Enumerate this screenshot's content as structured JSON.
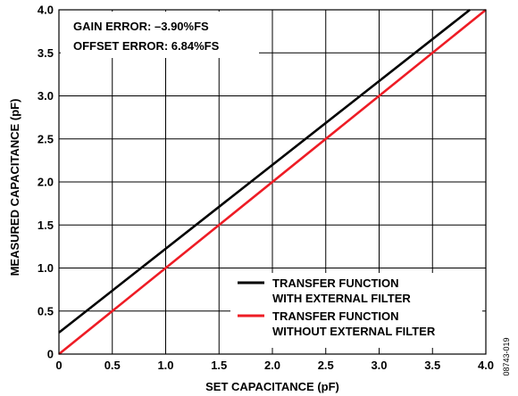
{
  "chart_data": {
    "type": "line",
    "xlabel": "SET CAPACITANCE (pF)",
    "ylabel": "MEASURED CAPACITANCE (pF)",
    "xlim": [
      0,
      4.0
    ],
    "ylim": [
      0,
      4.0
    ],
    "x_ticks": [
      "0",
      "0.5",
      "1.0",
      "1.5",
      "2.0",
      "2.5",
      "3.0",
      "3.5",
      "4.0"
    ],
    "y_ticks": [
      "0",
      "0.5",
      "1.0",
      "1.5",
      "2.0",
      "2.5",
      "3.0",
      "3.5",
      "4.0"
    ],
    "grid": true,
    "annotations": [
      "GAIN ERROR: –3.90%FS",
      "OFFSET ERROR: 6.84%FS"
    ],
    "legend_position": "bottom-right",
    "figure_id": "08743-019",
    "series": [
      {
        "name": "TRANSFER FUNCTION WITH EXTERNAL FILTER",
        "legend_lines": [
          "TRANSFER FUNCTION",
          "WITH EXTERNAL FILTER"
        ],
        "color": "#000000",
        "x": [
          0,
          3.85
        ],
        "y": [
          0.25,
          4.0
        ]
      },
      {
        "name": "TRANSFER FUNCTION WITHOUT EXTERNAL FILTER",
        "legend_lines": [
          "TRANSFER FUNCTION",
          "WITHOUT EXTERNAL FILTER"
        ],
        "color": "#ee1c25",
        "x": [
          0,
          4.0
        ],
        "y": [
          0,
          4.0
        ]
      }
    ]
  }
}
